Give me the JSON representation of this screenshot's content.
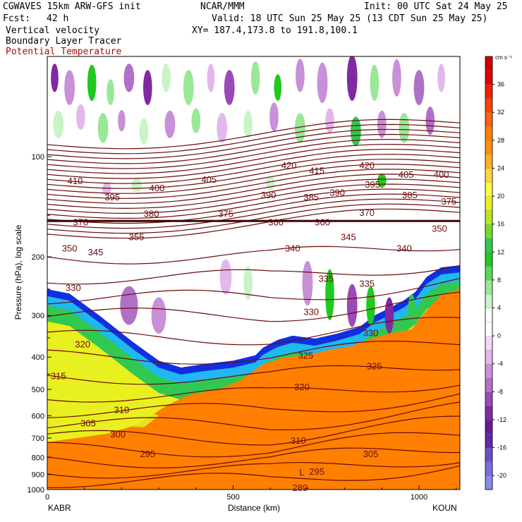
{
  "header": {
    "model": "CGWAVES 15km ARW-GFS init",
    "org": "NCAR/MMM",
    "init": "Init: 00 UTC Sat 24 May 25",
    "fcst_label": "Fcst:",
    "fcst_value": "42 h",
    "valid": "Valid: 18 UTC Sun 25 May 25 (13 CDT Sun 25 May 25)",
    "field1": "Vertical velocity",
    "field2": "Boundary Layer Tracer",
    "field3": "Potential Temperature",
    "xy": "XY= 187.4,173.8 to 191.8,100.1"
  },
  "colorbar": {
    "unit": "cm s⁻¹",
    "levels": [
      -22,
      -20,
      -18,
      -16,
      -14,
      -12,
      -10,
      -8,
      -6,
      -4,
      -2,
      0,
      2,
      4,
      6,
      8,
      10,
      12,
      14,
      16,
      18,
      20,
      22,
      24,
      26,
      28,
      30,
      32,
      34,
      36,
      38,
      40
    ],
    "labels": [
      -20,
      -16,
      -12,
      -8,
      -4,
      0,
      4,
      8,
      12,
      16,
      20,
      24,
      28,
      32,
      36
    ],
    "colors": [
      "#8a8ae8",
      "#7b6ce0",
      "#6a4fc8",
      "#5a2aa8",
      "#6a1a90",
      "#7f2aa0",
      "#9a4ab8",
      "#b070c8",
      "#c890d8",
      "#e2b8ea",
      "#f2d8f4",
      "#ffffff",
      "#ffffff",
      "#c8f4c8",
      "#98e898",
      "#58d858",
      "#20c820",
      "#30c850",
      "#7ad82a",
      "#b8e820",
      "#e8f020",
      "#ffff40",
      "#ffd840",
      "#ffb020",
      "#ff9010",
      "#ff8000",
      "#ff6010",
      "#ff4000",
      "#f02000",
      "#e00000",
      "#d00000"
    ]
  },
  "chart_data": {
    "type": "cross-section",
    "title": "CGWAVES 15km ARW-GFS init",
    "xlabel": "Distance (km)",
    "ylabel": "Pressure (hPa), log scale",
    "xlim": [
      0,
      1110
    ],
    "ylim": [
      1000,
      50
    ],
    "y_scale": "log",
    "x_ticks": [
      0,
      500,
      1000
    ],
    "y_ticks": [
      100,
      200,
      300,
      400,
      500,
      600,
      700,
      800,
      900,
      1000
    ],
    "endpoint_left": "KABR",
    "endpoint_right": "KOUN",
    "theta_labels": [
      {
        "text": "410",
        "x": 75,
        "p": 118
      },
      {
        "text": "395",
        "x": 175,
        "p": 132
      },
      {
        "text": "400",
        "x": 295,
        "p": 124
      },
      {
        "text": "405",
        "x": 435,
        "p": 117
      },
      {
        "text": "420",
        "x": 650,
        "p": 106
      },
      {
        "text": "415",
        "x": 725,
        "p": 110
      },
      {
        "text": "420",
        "x": 860,
        "p": 106
      },
      {
        "text": "405",
        "x": 965,
        "p": 113
      },
      {
        "text": "400",
        "x": 1060,
        "p": 113
      },
      {
        "text": "390",
        "x": 595,
        "p": 130
      },
      {
        "text": "385",
        "x": 710,
        "p": 132
      },
      {
        "text": "390",
        "x": 780,
        "p": 128
      },
      {
        "text": "395",
        "x": 875,
        "p": 121
      },
      {
        "text": "385",
        "x": 975,
        "p": 130
      },
      {
        "text": "375",
        "x": 1080,
        "p": 136
      },
      {
        "text": "380",
        "x": 280,
        "p": 148
      },
      {
        "text": "375",
        "x": 480,
        "p": 148
      },
      {
        "text": "370",
        "x": 860,
        "p": 147
      },
      {
        "text": "370",
        "x": 90,
        "p": 157
      },
      {
        "text": "360",
        "x": 615,
        "p": 157
      },
      {
        "text": "360",
        "x": 740,
        "p": 157
      },
      {
        "text": "355",
        "x": 240,
        "p": 174
      },
      {
        "text": "345",
        "x": 810,
        "p": 174
      },
      {
        "text": "350",
        "x": 1055,
        "p": 164
      },
      {
        "text": "350",
        "x": 60,
        "p": 188
      },
      {
        "text": "345",
        "x": 130,
        "p": 193
      },
      {
        "text": "340",
        "x": 660,
        "p": 188
      },
      {
        "text": "340",
        "x": 960,
        "p": 188
      },
      {
        "text": "330",
        "x": 70,
        "p": 247
      },
      {
        "text": "335",
        "x": 750,
        "p": 232
      },
      {
        "text": "335",
        "x": 860,
        "p": 240
      },
      {
        "text": "330",
        "x": 710,
        "p": 292
      },
      {
        "text": "330",
        "x": 870,
        "p": 338
      },
      {
        "text": "320",
        "x": 95,
        "p": 365
      },
      {
        "text": "325",
        "x": 695,
        "p": 395
      },
      {
        "text": "325",
        "x": 880,
        "p": 425
      },
      {
        "text": "315",
        "x": 30,
        "p": 455
      },
      {
        "text": "320",
        "x": 685,
        "p": 490
      },
      {
        "text": "310",
        "x": 200,
        "p": 575
      },
      {
        "text": "305",
        "x": 110,
        "p": 630
      },
      {
        "text": "300",
        "x": 190,
        "p": 680
      },
      {
        "text": "310",
        "x": 675,
        "p": 710
      },
      {
        "text": "295",
        "x": 270,
        "p": 780
      },
      {
        "text": "305",
        "x": 870,
        "p": 780
      },
      {
        "text": "295",
        "x": 725,
        "p": 880
      },
      {
        "text": "L",
        "x": 685,
        "p": 885
      },
      {
        "text": "289",
        "x": 680,
        "p": 985
      }
    ]
  }
}
